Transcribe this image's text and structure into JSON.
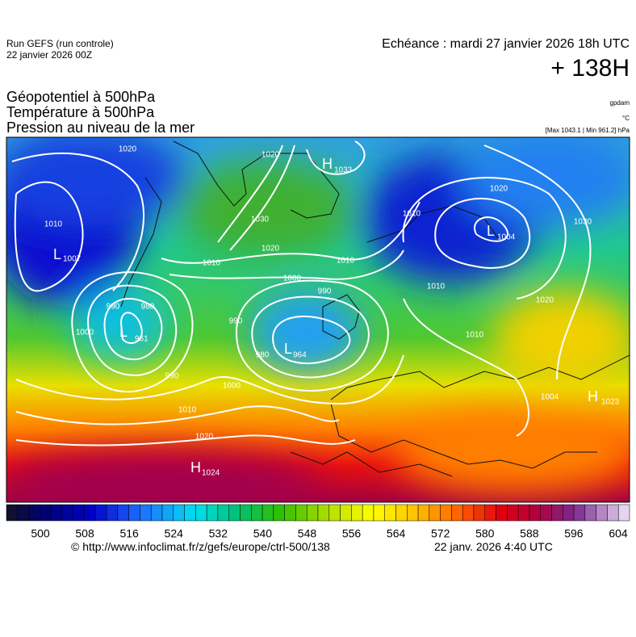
{
  "header": {
    "run": "Run GEFS (run controle)",
    "run_date": "22 janvier 2026 00Z",
    "valid": "Echéance : mardi 27 janvier 2026 18h UTC",
    "lead": "+ 138H"
  },
  "titles": [
    "Géopotentiel à 500hPa",
    "Température à 500hPa",
    "Pression au niveau de la mer"
  ],
  "units": {
    "geopotential": "gpdam",
    "temperature": "°C",
    "pressure": "[Max 1043.1 | Min 961.2] hPa"
  },
  "centers": [
    {
      "letter": "L",
      "value": "1007"
    },
    {
      "letter": "L",
      "value": "961"
    },
    {
      "letter": "L",
      "value": "964"
    },
    {
      "letter": "H",
      "value": "1033"
    },
    {
      "letter": "L",
      "value": "1004"
    },
    {
      "letter": "H",
      "value": "1023"
    },
    {
      "letter": "H",
      "value": "1024"
    }
  ],
  "isobar_labels": [
    "1020",
    "1010",
    "990",
    "980",
    "1000",
    "990",
    "1000",
    "1010",
    "1020",
    "1030",
    "1020",
    "1000",
    "990",
    "1010",
    "1010",
    "980",
    "990",
    "1020",
    "1010",
    "1020",
    "1030",
    "1020",
    "1010",
    "1010",
    "1004"
  ],
  "colorbar": {
    "ticks": [
      500,
      508,
      516,
      524,
      532,
      540,
      548,
      556,
      564,
      572,
      580,
      588,
      596,
      604
    ]
  },
  "footer": {
    "url": "© http://www.infoclimat.fr/z/gefs/europe/ctrl-500/138",
    "generated": "22 janv. 2026  4:40 UTC"
  }
}
